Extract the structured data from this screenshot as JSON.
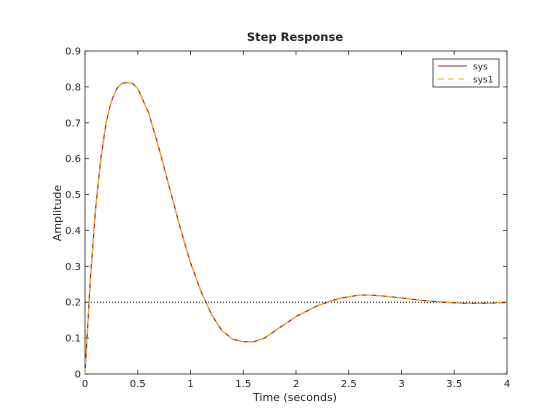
{
  "chart_data": {
    "type": "line",
    "title": "Step Response",
    "xlabel": "Time (seconds)",
    "ylabel": "Amplitude",
    "xlim": [
      0,
      4
    ],
    "ylim": [
      0,
      0.9
    ],
    "xticks": [
      0,
      0.5,
      1,
      1.5,
      2,
      2.5,
      3,
      3.5,
      4
    ],
    "yticks": [
      0,
      0.1,
      0.2,
      0.3,
      0.4,
      0.5,
      0.6,
      0.7,
      0.8,
      0.9
    ],
    "grid": false,
    "legend_position": "top-right",
    "reference_line": {
      "y": 0.2,
      "style": "dotted",
      "color": "#000000"
    },
    "series": [
      {
        "name": "sys",
        "color": "#a0262a",
        "style": "solid",
        "x": [
          0,
          0.05,
          0.1,
          0.15,
          0.2,
          0.25,
          0.3,
          0.35,
          0.4,
          0.45,
          0.5,
          0.6,
          0.7,
          0.8,
          0.9,
          1.0,
          1.1,
          1.2,
          1.3,
          1.4,
          1.5,
          1.6,
          1.7,
          1.8,
          1.9,
          2.0,
          2.2,
          2.4,
          2.6,
          2.7,
          2.8,
          3.0,
          3.2,
          3.4,
          3.6,
          3.8,
          4.0
        ],
        "y": [
          0,
          0.26,
          0.46,
          0.6,
          0.7,
          0.76,
          0.795,
          0.81,
          0.812,
          0.81,
          0.795,
          0.73,
          0.63,
          0.52,
          0.41,
          0.31,
          0.23,
          0.165,
          0.12,
          0.097,
          0.09,
          0.09,
          0.1,
          0.12,
          0.14,
          0.16,
          0.19,
          0.21,
          0.22,
          0.22,
          0.218,
          0.212,
          0.205,
          0.2,
          0.197,
          0.197,
          0.199
        ]
      },
      {
        "name": "sys1",
        "color": "#f2b21a",
        "style": "dashed",
        "x": [
          0,
          0.05,
          0.1,
          0.15,
          0.2,
          0.25,
          0.3,
          0.35,
          0.4,
          0.45,
          0.5,
          0.6,
          0.7,
          0.8,
          0.9,
          1.0,
          1.1,
          1.2,
          1.3,
          1.4,
          1.5,
          1.6,
          1.7,
          1.8,
          1.9,
          2.0,
          2.2,
          2.4,
          2.6,
          2.7,
          2.8,
          3.0,
          3.2,
          3.4,
          3.6,
          3.8,
          4.0
        ],
        "y": [
          0,
          0.26,
          0.46,
          0.6,
          0.7,
          0.76,
          0.795,
          0.81,
          0.812,
          0.81,
          0.795,
          0.73,
          0.63,
          0.52,
          0.41,
          0.31,
          0.23,
          0.165,
          0.12,
          0.097,
          0.09,
          0.09,
          0.1,
          0.12,
          0.14,
          0.16,
          0.19,
          0.21,
          0.22,
          0.22,
          0.218,
          0.212,
          0.205,
          0.2,
          0.197,
          0.197,
          0.199
        ]
      }
    ]
  }
}
